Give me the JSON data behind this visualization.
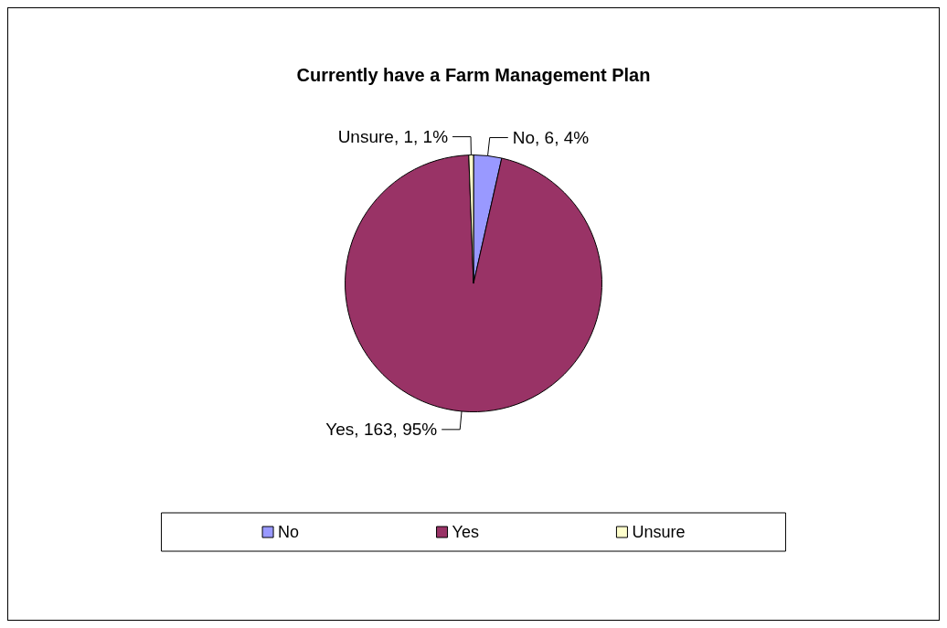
{
  "chart_data": {
    "type": "pie",
    "title": "Currently have a Farm Management Plan",
    "categories": [
      "No",
      "Yes",
      "Unsure"
    ],
    "values": [
      6,
      163,
      1
    ],
    "colors": [
      "#9999ff",
      "#993366",
      "#ffffcc"
    ],
    "value_labels": [
      "No, 6, 4%",
      "Yes, 163, 95%",
      "Unsure, 1, 1%"
    ],
    "legend": "bottom"
  }
}
